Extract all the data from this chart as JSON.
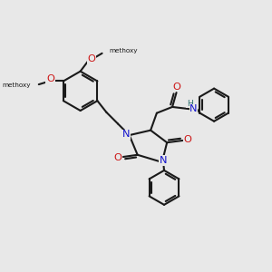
{
  "bg_color": "#e8e8e8",
  "bond_color": "#1a1a1a",
  "N_color": "#1414cc",
  "O_color": "#cc1414",
  "NH_color": "#2a7070",
  "lw": 1.5,
  "fs": 7.2,
  "xlim": [
    -2.5,
    3.5
  ],
  "ylim": [
    -3.0,
    2.5
  ]
}
